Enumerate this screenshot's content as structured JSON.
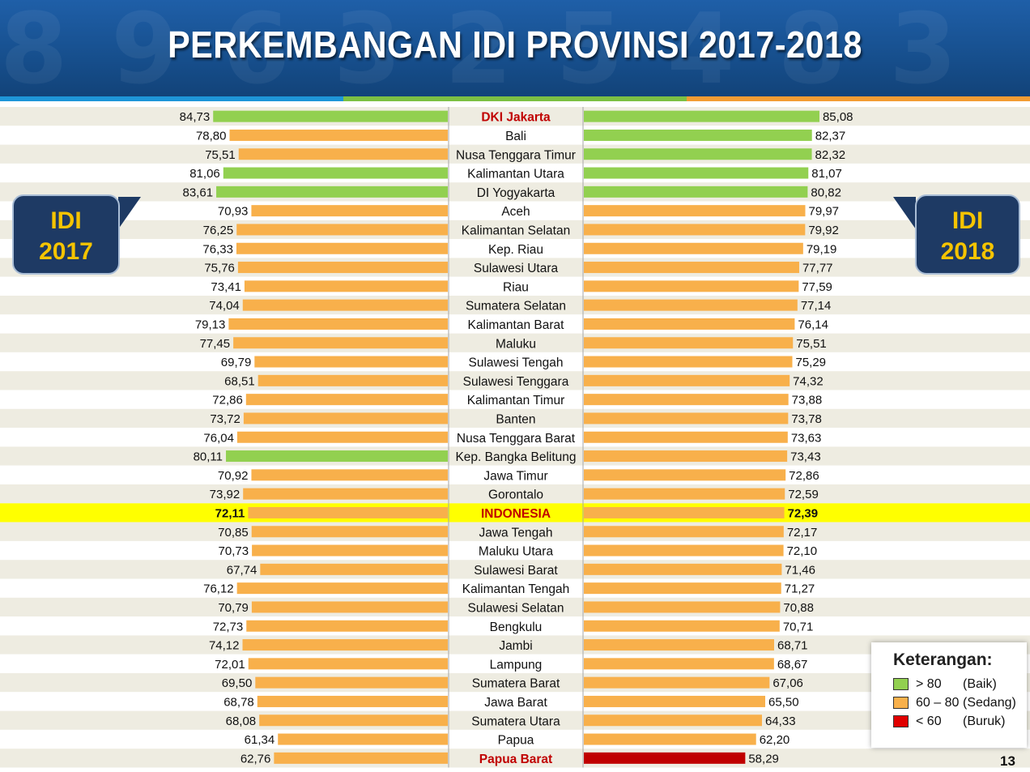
{
  "title": "PERKEMBANGAN IDI PROVINSI 2017-2018",
  "callout_left": {
    "line1": "IDI",
    "line2": "2017"
  },
  "callout_right": {
    "line1": "IDI",
    "line2": "2018"
  },
  "legend": {
    "title": "Keterangan:",
    "items": [
      {
        "range": "> 80",
        "label": "(Baik)",
        "color": "#92d050"
      },
      {
        "range": "60 – 80",
        "label": "(Sedang)",
        "color": "#f8b04b"
      },
      {
        "range": "< 60",
        "label": "(Buruk)",
        "color": "#e00000"
      }
    ]
  },
  "page_number": "13",
  "colors": {
    "good": "#92d050",
    "medium": "#f8b04b",
    "bad": "#c00000",
    "highlight_row": "#ffff00",
    "header_bg": "#1a5598"
  },
  "chart_data": {
    "type": "bar",
    "orientation": "horizontal-butterfly",
    "highlight": "INDONESIA",
    "red_labels": [
      "DKI Jakarta",
      "INDONESIA",
      "Papua Barat"
    ],
    "categories": [
      "DKI Jakarta",
      "Bali",
      "Nusa Tenggara Timur",
      "Kalimantan Utara",
      "DI Yogyakarta",
      "Aceh",
      "Kalimantan Selatan",
      "Kep. Riau",
      "Sulawesi Utara",
      "Riau",
      "Sumatera Selatan",
      "Kalimantan Barat",
      "Maluku",
      "Sulawesi Tengah",
      "Sulawesi Tenggara",
      "Kalimantan Timur",
      "Banten",
      "Nusa Tenggara Barat",
      "Kep. Bangka Belitung",
      "Jawa Timur",
      "Gorontalo",
      "INDONESIA",
      "Jawa Tengah",
      "Maluku Utara",
      "Sulawesi Barat",
      "Kalimantan Tengah",
      "Sulawesi Selatan",
      "Bengkulu",
      "Jambi",
      "Lampung",
      "Sumatera Barat",
      "Jawa Barat",
      "Sumatera Utara",
      "Papua",
      "Papua Barat"
    ],
    "series": [
      {
        "name": "IDI 2017",
        "labels": [
          "84,73",
          "78,80",
          "75,51",
          "81,06",
          "83,61",
          "70,93",
          "76,25",
          "76,33",
          "75,76",
          "73,41",
          "74,04",
          "79,13",
          "77,45",
          "69,79",
          "68,51",
          "72,86",
          "73,72",
          "76,04",
          "80,11",
          "70,92",
          "73,92",
          "72,11",
          "70,85",
          "70,73",
          "67,74",
          "76,12",
          "70,79",
          "72,73",
          "74,12",
          "72,01",
          "69,50",
          "68,78",
          "68,08",
          "61,34",
          "62,76"
        ],
        "values": [
          84.73,
          78.8,
          75.51,
          81.06,
          83.61,
          70.93,
          76.25,
          76.33,
          75.76,
          73.41,
          74.04,
          79.13,
          77.45,
          69.79,
          68.51,
          72.86,
          73.72,
          76.04,
          80.11,
          70.92,
          73.92,
          72.11,
          70.85,
          70.73,
          67.74,
          76.12,
          70.79,
          72.73,
          74.12,
          72.01,
          69.5,
          68.78,
          68.08,
          61.34,
          62.76
        ]
      },
      {
        "name": "IDI 2018",
        "labels": [
          "85,08",
          "82,37",
          "82,32",
          "81,07",
          "80,82",
          "79,97",
          "79,92",
          "79,19",
          "77,77",
          "77,59",
          "77,14",
          "76,14",
          "75,51",
          "75,29",
          "74,32",
          "73,88",
          "73,78",
          "73,63",
          "73,43",
          "72,86",
          "72,59",
          "72,39",
          "72,17",
          "72,10",
          "71,46",
          "71,27",
          "70,88",
          "70,71",
          "68,71",
          "68,67",
          "67,06",
          "65,50",
          "64,33",
          "62,20",
          "58,29"
        ],
        "values": [
          85.08,
          82.37,
          82.32,
          81.07,
          80.82,
          79.97,
          79.92,
          79.19,
          77.77,
          77.59,
          77.14,
          76.14,
          75.51,
          75.29,
          74.32,
          73.88,
          73.78,
          73.63,
          73.43,
          72.86,
          72.59,
          72.39,
          72.17,
          72.1,
          71.46,
          71.27,
          70.88,
          70.71,
          68.71,
          68.67,
          67.06,
          65.5,
          64.33,
          62.2,
          58.29
        ]
      }
    ]
  }
}
